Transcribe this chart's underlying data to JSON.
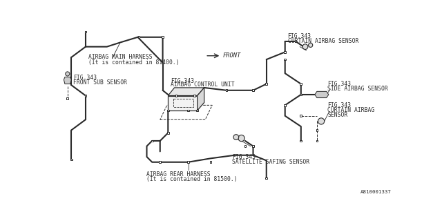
{
  "bg_color": "#ffffff",
  "line_color": "#2a2a2a",
  "lw": 1.5,
  "part_number": "A810001337",
  "labels": {
    "main_harness": "AIRBAG MAIN HARNESS",
    "main_harness2": "(It is contained in 81400.)",
    "front_sub": "FIG.343",
    "front_sub2": "FRONT SUB SENSOR",
    "control_unit": "FIG.343",
    "control_unit2": "AIRBAG CONTROL UNIT",
    "curtain_top1": "FIG.343",
    "curtain_top2": "CURTAIN AIRBAG SENSOR",
    "side1": "FIG.343",
    "side2": "SIDE AIRBAG SENSOR",
    "curtain_r1": "FIG.343",
    "curtain_r2": "CURTAIN AIRBAG",
    "curtain_r3": "SENSOR",
    "rear1": "AIRBAG REAR HARNESS",
    "rear2": "(It is contained in 81500.)",
    "sat1": "FIG.343",
    "sat2": "SATELLITE SAFING SENSOR",
    "front": "FRONT"
  },
  "fs": 5.8,
  "cs": 3.5
}
